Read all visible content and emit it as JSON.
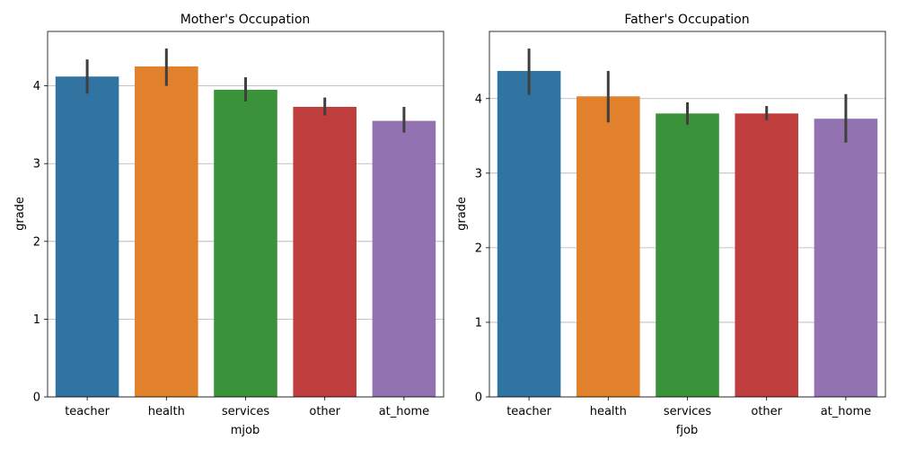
{
  "chart_data": [
    {
      "type": "bar",
      "title": "Mother's Occupation",
      "xlabel": "mjob",
      "ylabel": "grade",
      "categories": [
        "teacher",
        "health",
        "services",
        "other",
        "at_home"
      ],
      "values": [
        4.12,
        4.25,
        3.95,
        3.73,
        3.55
      ],
      "error_low": [
        3.9,
        4.0,
        3.8,
        3.62,
        3.4
      ],
      "error_high": [
        4.34,
        4.48,
        4.11,
        3.85,
        3.73
      ],
      "ylim": [
        0,
        4.7
      ],
      "yticks": [
        0,
        1,
        2,
        3,
        4
      ],
      "grid": "y",
      "colors": [
        "#3274a1",
        "#e1812c",
        "#3a923a",
        "#c03d3e",
        "#9372b2"
      ]
    },
    {
      "type": "bar",
      "title": "Father's Occupation",
      "xlabel": "fjob",
      "ylabel": "grade",
      "categories": [
        "teacher",
        "health",
        "services",
        "other",
        "at_home"
      ],
      "values": [
        4.37,
        4.03,
        3.8,
        3.8,
        3.73
      ],
      "error_low": [
        4.05,
        3.68,
        3.65,
        3.71,
        3.41
      ],
      "error_high": [
        4.67,
        4.37,
        3.95,
        3.9,
        4.06
      ],
      "ylim": [
        0,
        4.9
      ],
      "yticks": [
        0,
        1,
        2,
        3,
        4
      ],
      "grid": "y",
      "colors": [
        "#3274a1",
        "#e1812c",
        "#3a923a",
        "#c03d3e",
        "#9372b2"
      ]
    }
  ]
}
